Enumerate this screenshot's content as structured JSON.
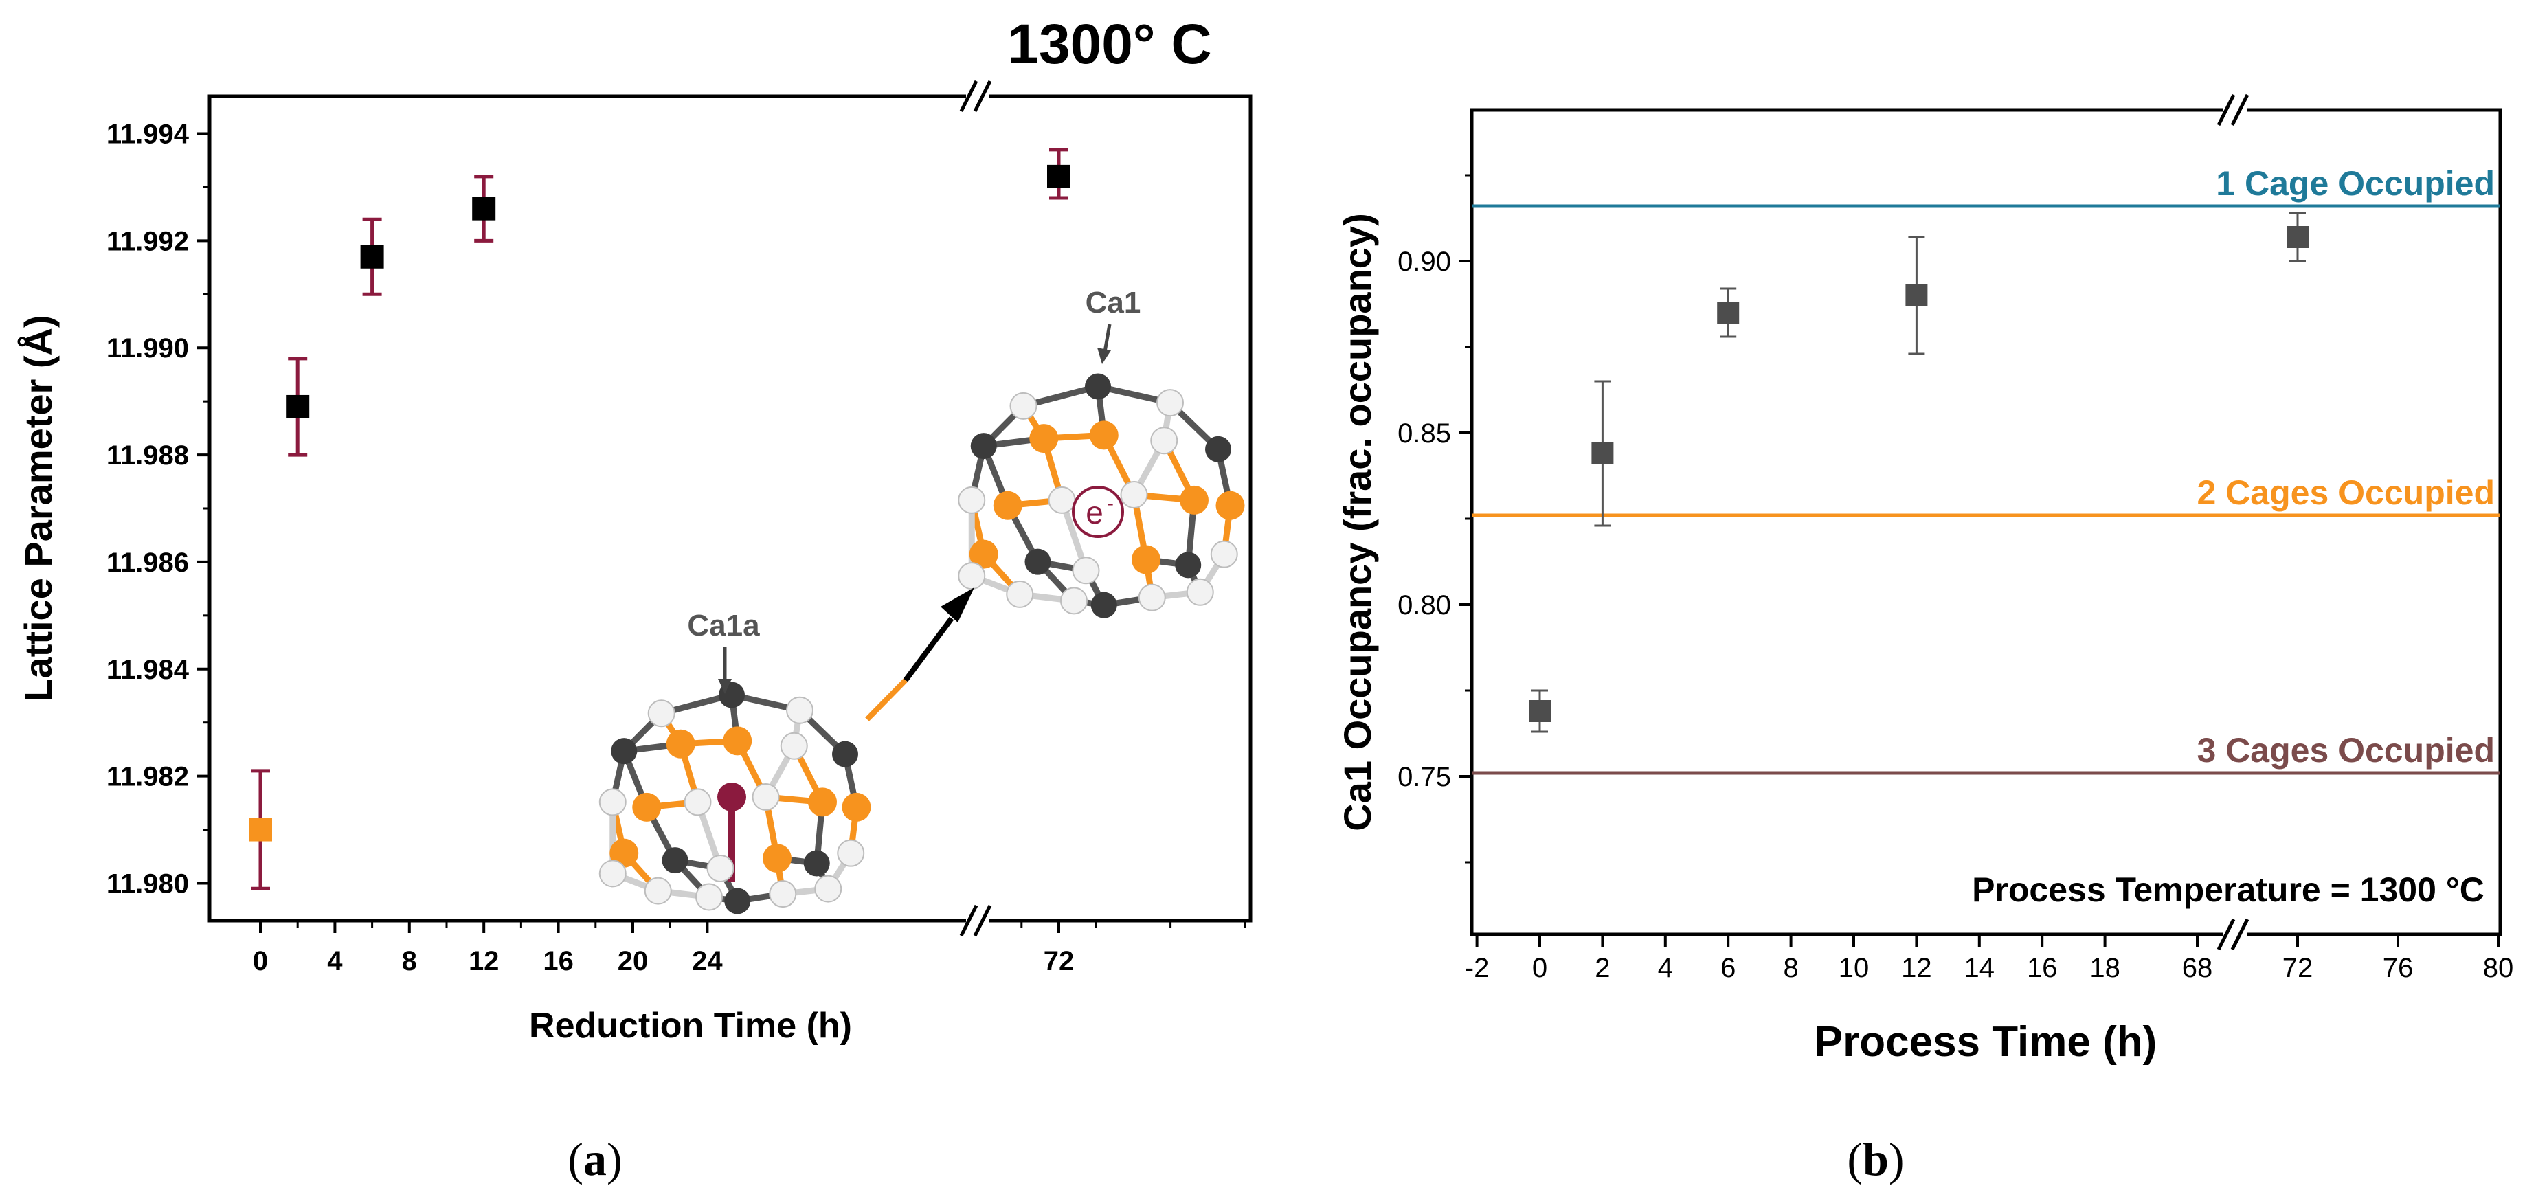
{
  "chart_data": [
    {
      "id": "a",
      "type": "scatter",
      "title": "1300° C",
      "xlabel": "Reduction Time (h)",
      "ylabel": "Lattice Parameter (Å)",
      "panel_label": "(a)",
      "panel_letter": "a",
      "x_ticks": [
        "0",
        "4",
        "8",
        "12",
        "16",
        "20",
        "24",
        "72"
      ],
      "x_tick_values": [
        0,
        4,
        8,
        12,
        16,
        20,
        24,
        72
      ],
      "y_ticks": [
        "11.980",
        "11.982",
        "11.984",
        "11.986",
        "11.988",
        "11.990",
        "11.992",
        "11.994"
      ],
      "y_tick_values": [
        11.98,
        11.982,
        11.984,
        11.986,
        11.988,
        11.99,
        11.992,
        11.994
      ],
      "ylim": [
        11.9793,
        11.9947
      ],
      "x_break": "between 24 and 72",
      "points": [
        {
          "x": 0,
          "y": 11.981,
          "err_low": 11.9799,
          "err_high": 11.9821,
          "color": "#f7931e"
        },
        {
          "x": 2,
          "y": 11.9889,
          "err_low": 11.988,
          "err_high": 11.9898,
          "color": "#000000"
        },
        {
          "x": 6,
          "y": 11.9917,
          "err_low": 11.991,
          "err_high": 11.9924,
          "color": "#000000"
        },
        {
          "x": 12,
          "y": 11.9926,
          "err_low": 11.992,
          "err_high": 11.9932,
          "color": "#000000"
        },
        {
          "x": 72,
          "y": 11.9932,
          "err_low": 11.9928,
          "err_high": 11.9937,
          "color": "#000000"
        }
      ],
      "errorbar_color": "#8b1a3e",
      "inset": {
        "label_small_cage": "Ca1a",
        "label_large_cage": "Ca1",
        "electron_symbol": "e",
        "electron_superscript": "-",
        "atom_colors": {
          "orange": "#f7931e",
          "dark": "#3b3b3b",
          "white": "#f2f2f2",
          "center": "#8b1a3e"
        }
      }
    },
    {
      "id": "b",
      "type": "scatter",
      "xlabel": "Process Time (h)",
      "ylabel": "Ca1 Occupancy (frac. occupancy)",
      "panel_label": "(b)",
      "panel_letter": "b",
      "annotation": "Process Temperature = 1300 °C",
      "x_ticks": [
        "-2",
        "0",
        "2",
        "4",
        "6",
        "8",
        "10",
        "12",
        "14",
        "16",
        "18",
        "68",
        "72",
        "76",
        "80"
      ],
      "x_tick_values": [
        -2,
        0,
        2,
        4,
        6,
        8,
        10,
        12,
        14,
        16,
        18,
        68,
        72,
        76,
        80
      ],
      "y_ticks": [
        "0.75",
        "0.80",
        "0.85",
        "0.90"
      ],
      "y_tick_values": [
        0.75,
        0.8,
        0.85,
        0.9
      ],
      "ylim": [
        0.704,
        0.944
      ],
      "x_break": "between 18 and 68",
      "points": [
        {
          "x": 0,
          "y": 0.769,
          "err_low": 0.763,
          "err_high": 0.775
        },
        {
          "x": 2,
          "y": 0.844,
          "err_low": 0.823,
          "err_high": 0.865
        },
        {
          "x": 6,
          "y": 0.885,
          "err_low": 0.878,
          "err_high": 0.892
        },
        {
          "x": 12,
          "y": 0.89,
          "err_low": 0.873,
          "err_high": 0.907
        },
        {
          "x": 72,
          "y": 0.907,
          "err_low": 0.9,
          "err_high": 0.914
        }
      ],
      "marker_color": "#4d4d4d",
      "reference_lines": [
        {
          "y": 0.916,
          "label": "1 Cage Occupied",
          "color": "#1f7a99"
        },
        {
          "y": 0.826,
          "label": "2 Cages Occupied",
          "color": "#f7931e"
        },
        {
          "y": 0.751,
          "label": "3 Cages Occupied",
          "color": "#7b4b4b"
        }
      ]
    }
  ]
}
